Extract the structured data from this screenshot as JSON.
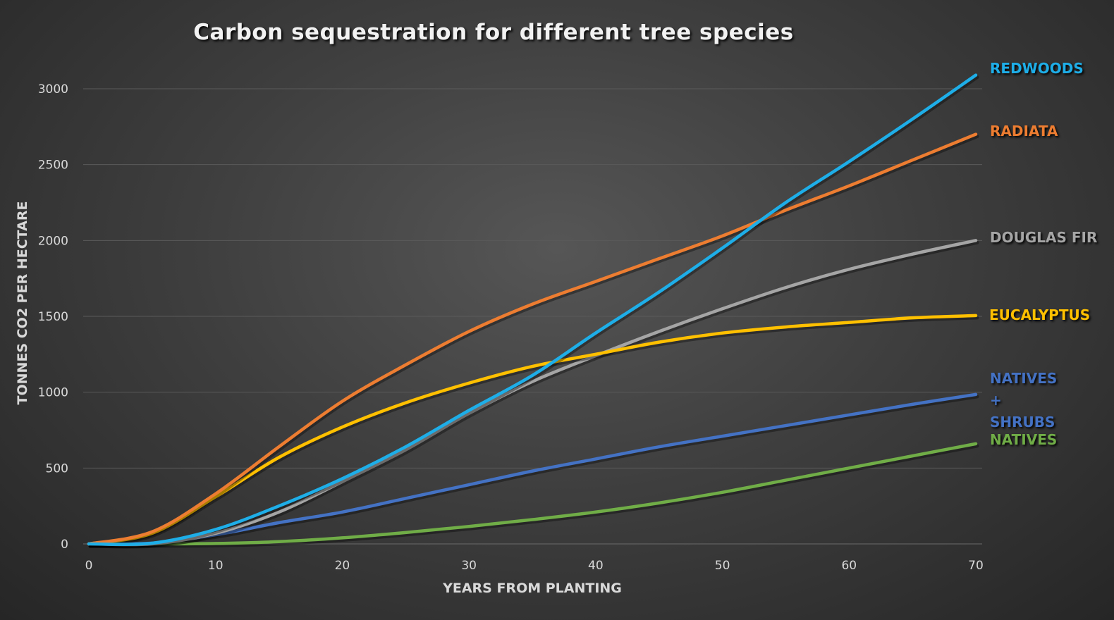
{
  "chart_data": {
    "type": "line",
    "title": "Carbon sequestration for different tree species",
    "xlabel": "YEARS FROM PLANTING",
    "ylabel": "TONNES CO2 PER HECTARE",
    "xlim": [
      0,
      70
    ],
    "ylim": [
      0,
      3000
    ],
    "xticks": [
      0,
      10,
      20,
      30,
      40,
      50,
      60,
      70
    ],
    "yticks": [
      0,
      500,
      1000,
      1500,
      2000,
      2500,
      3000
    ],
    "grid": "horizontal",
    "legend": "labels at line ends (right)",
    "x": [
      0,
      5,
      10,
      15,
      20,
      25,
      30,
      35,
      40,
      45,
      50,
      55,
      60,
      65,
      70
    ],
    "series": [
      {
        "name": "NATIVES",
        "color": "#70ad47",
        "values": [
          0,
          0,
          3,
          15,
          40,
          75,
          115,
          160,
          210,
          270,
          340,
          420,
          500,
          580,
          660
        ]
      },
      {
        "name": "NATIVES + SHRUBS",
        "color": "#4472c4",
        "values": [
          0,
          5,
          60,
          140,
          210,
          300,
          390,
          480,
          560,
          640,
          710,
          780,
          850,
          920,
          985
        ]
      },
      {
        "name": "DOUGLAS FIR",
        "color": "#a5a5a5",
        "values": [
          0,
          0,
          70,
          210,
          410,
          620,
          860,
          1070,
          1240,
          1400,
          1550,
          1690,
          1810,
          1910,
          2000
        ]
      },
      {
        "name": "EUCALYPTUS",
        "color": "#ffc000",
        "values": [
          0,
          70,
          310,
          570,
          770,
          930,
          1060,
          1170,
          1250,
          1330,
          1390,
          1430,
          1460,
          1490,
          1505
        ]
      },
      {
        "name": "RADIATA",
        "color": "#ed7d31",
        "values": [
          0,
          80,
          330,
          640,
          940,
          1180,
          1400,
          1580,
          1730,
          1880,
          2030,
          2200,
          2360,
          2530,
          2700
        ]
      },
      {
        "name": "REDWOODS",
        "color": "#1eaee8",
        "values": [
          0,
          5,
          95,
          250,
          430,
          640,
          880,
          1110,
          1390,
          1660,
          1950,
          2250,
          2520,
          2800,
          3090
        ]
      }
    ]
  }
}
